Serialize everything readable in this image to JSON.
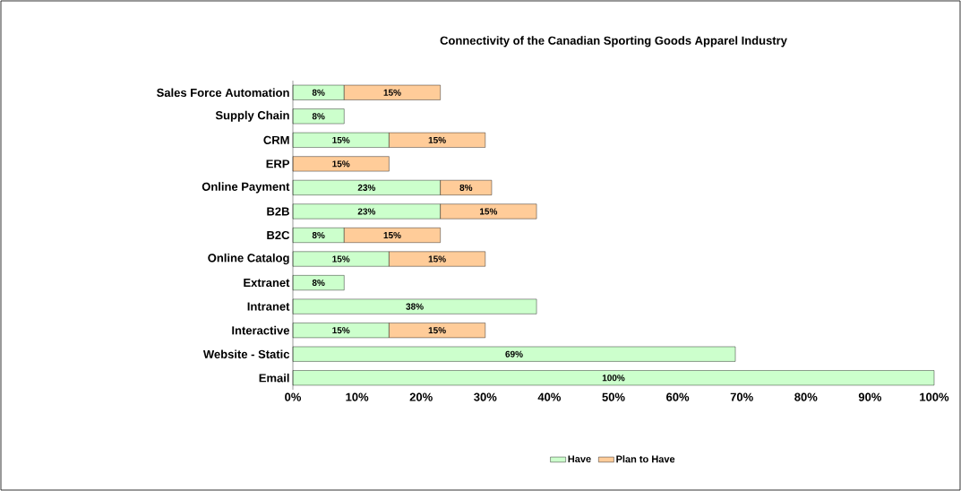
{
  "chart_data": {
    "type": "bar",
    "orientation": "horizontal",
    "stacked": true,
    "title": "Connectivity of the Canadian Sporting Goods Apparel Industry",
    "categories": [
      "Sales Force Automation",
      "Supply Chain",
      "CRM",
      "ERP",
      "Online Payment",
      "B2B",
      "B2C",
      "Online Catalog",
      "Extranet",
      "Intranet",
      "Interactive",
      "Website - Static",
      "Email"
    ],
    "series": [
      {
        "name": "Have",
        "color": "#ccffcc",
        "values": [
          8,
          8,
          15,
          null,
          23,
          23,
          8,
          15,
          8,
          38,
          15,
          69,
          100
        ],
        "value_labels": [
          "8%",
          "8%",
          "15%",
          null,
          "23%",
          "23%",
          "8%",
          "15%",
          "8%",
          "38%",
          "15%",
          "69%",
          "100%"
        ]
      },
      {
        "name": "Plan to Have",
        "color": "#ffcc99",
        "values": [
          15,
          null,
          15,
          15,
          8,
          15,
          15,
          15,
          null,
          null,
          15,
          null,
          null
        ],
        "value_labels": [
          "15%",
          null,
          "15%",
          "15%",
          "8%",
          "15%",
          "15%",
          "15%",
          null,
          null,
          "15%",
          null,
          null
        ]
      }
    ],
    "xlim": [
      0,
      100
    ],
    "xticks": [
      {
        "value": 0,
        "label": "0%"
      },
      {
        "value": 10,
        "label": "10%"
      },
      {
        "value": 20,
        "label": "20%"
      },
      {
        "value": 30,
        "label": "30%"
      },
      {
        "value": 40,
        "label": "40%"
      },
      {
        "value": 50,
        "label": "50%"
      },
      {
        "value": 60,
        "label": "60%"
      },
      {
        "value": 70,
        "label": "70%"
      },
      {
        "value": 80,
        "label": "80%"
      },
      {
        "value": 90,
        "label": "90%"
      },
      {
        "value": 100,
        "label": "100%"
      }
    ],
    "legend": "bottom",
    "grid": false
  }
}
